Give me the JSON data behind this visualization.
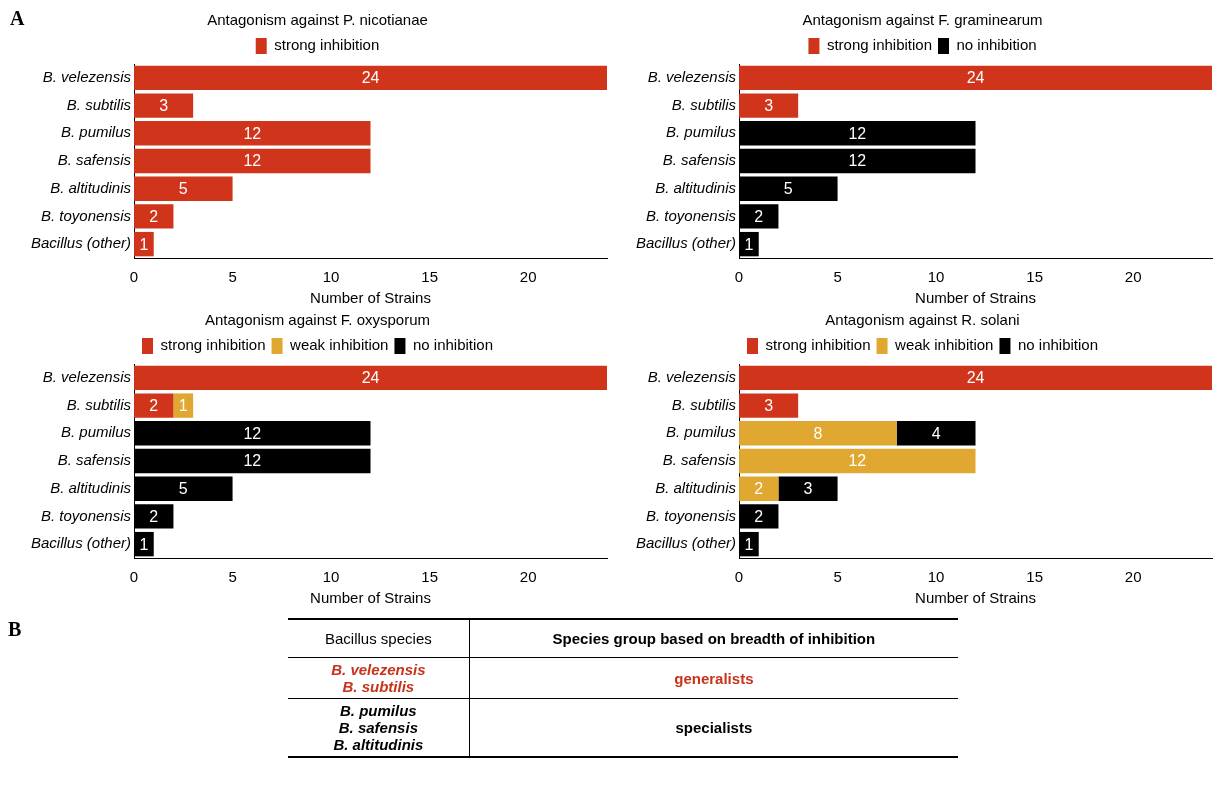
{
  "chart_data": [
    {
      "type": "bar",
      "orientation": "horizontal",
      "stacked": true,
      "title": "Antagonism against P. nicotianae",
      "xlabel": "Number of Strains",
      "annotations": [
        "A"
      ],
      "categories": [
        "B. velezensis",
        "B. subtilis",
        "B. pumilus",
        "B. safensis",
        "B. altitudinis",
        "B. toyonensis",
        "Bacillus (other)"
      ],
      "xlim": [
        0,
        24
      ],
      "xticks": [
        0,
        5,
        10,
        15,
        20
      ],
      "grid": false,
      "legend": "top",
      "data_labels": true,
      "series": [
        {
          "name": "strong inhibition",
          "color": "#d0341a",
          "values": [
            24,
            3,
            12,
            12,
            5,
            2,
            1
          ]
        }
      ]
    },
    {
      "type": "bar",
      "orientation": "horizontal",
      "stacked": true,
      "title": "Antagonism against F. graminearum",
      "xlabel": "Number of Strains",
      "categories": [
        "B. velezensis",
        "B. subtilis",
        "B. pumilus",
        "B. safensis",
        "B. altitudinis",
        "B. toyonensis",
        "Bacillus (other)"
      ],
      "xlim": [
        0,
        24
      ],
      "xticks": [
        0,
        5,
        10,
        15,
        20
      ],
      "grid": false,
      "legend": "top",
      "data_labels": true,
      "series": [
        {
          "name": "strong inhibition",
          "color": "#d0341a",
          "values": [
            24,
            3,
            null,
            null,
            null,
            null,
            null
          ]
        },
        {
          "name": "no inhibition",
          "color": "#000000",
          "values": [
            null,
            null,
            12,
            12,
            5,
            2,
            1
          ]
        }
      ]
    },
    {
      "type": "bar",
      "orientation": "horizontal",
      "stacked": true,
      "title": "Antagonism against F. oxysporum",
      "xlabel": "Number of Strains",
      "categories": [
        "B. velezensis",
        "B. subtilis",
        "B. pumilus",
        "B. safensis",
        "B. altitudinis",
        "B. toyonensis",
        "Bacillus (other)"
      ],
      "xlim": [
        0,
        24
      ],
      "xticks": [
        0,
        5,
        10,
        15,
        20
      ],
      "grid": false,
      "legend": "top",
      "data_labels": true,
      "series": [
        {
          "name": "strong inhibition",
          "color": "#d0341a",
          "values": [
            24,
            2,
            null,
            null,
            null,
            null,
            null
          ]
        },
        {
          "name": "weak inhibition",
          "color": "#e0a830",
          "values": [
            null,
            1,
            null,
            null,
            null,
            null,
            null
          ]
        },
        {
          "name": "no inhibition",
          "color": "#000000",
          "values": [
            null,
            null,
            12,
            12,
            5,
            2,
            1
          ]
        }
      ]
    },
    {
      "type": "bar",
      "orientation": "horizontal",
      "stacked": true,
      "title": "Antagonism against R. solani",
      "xlabel": "Number of Strains",
      "categories": [
        "B. velezensis",
        "B. subtilis",
        "B. pumilus",
        "B. safensis",
        "B. altitudinis",
        "B. toyonensis",
        "Bacillus (other)"
      ],
      "xlim": [
        0,
        24
      ],
      "xticks": [
        0,
        5,
        10,
        15,
        20
      ],
      "grid": false,
      "legend": "top",
      "data_labels": true,
      "series": [
        {
          "name": "strong inhibition",
          "color": "#d0341a",
          "values": [
            24,
            3,
            null,
            null,
            null,
            null,
            null
          ]
        },
        {
          "name": "weak inhibition",
          "color": "#e0a830",
          "values": [
            null,
            null,
            8,
            12,
            2,
            null,
            null
          ]
        },
        {
          "name": "no inhibition",
          "color": "#000000",
          "values": [
            null,
            null,
            4,
            null,
            3,
            2,
            1
          ]
        }
      ]
    },
    {
      "type": "other",
      "annotations": [
        "B",
        "Bacillus species",
        "Species group based on breadth of inhibition",
        "B. velezensis",
        "B. subtilis",
        "generalists",
        "B. pumilus",
        "B. safensis",
        "B. altitudinis",
        "specialists"
      ]
    }
  ]
}
